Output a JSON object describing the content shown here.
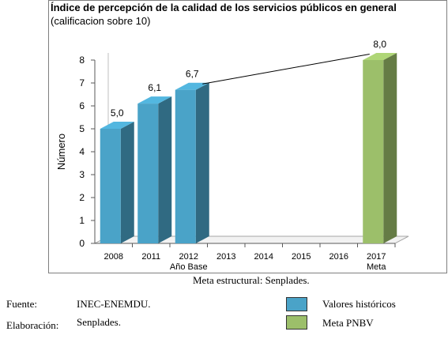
{
  "chart_data": {
    "type": "bar",
    "title": "Índice de percepción de la calidad de los servicios públicos en general",
    "subtitle": "(calificacion sobre 10)",
    "ylabel": "Número",
    "xlabel": "",
    "ylim": [
      0,
      8
    ],
    "yticks": [
      "0",
      "1",
      "2",
      "3",
      "4",
      "5",
      "6",
      "7",
      "8"
    ],
    "categories": [
      "2008",
      "2011",
      "2012",
      "2013",
      "2014",
      "2015",
      "2016",
      "2017"
    ],
    "category_sublabels": [
      "",
      "",
      "Año Base",
      "",
      "",
      "",
      "",
      "Meta"
    ],
    "series": [
      {
        "name": "Valores históricos",
        "color": "#4aa3c8",
        "values": [
          5.0,
          6.1,
          6.7,
          null,
          null,
          null,
          null,
          null
        ],
        "labels": [
          "5,0",
          "6,1",
          "6,7",
          "",
          "",
          "",
          "",
          ""
        ]
      },
      {
        "name": "Meta PNBV",
        "color": "#9cbf6a",
        "values": [
          null,
          null,
          null,
          null,
          null,
          null,
          null,
          8.0
        ],
        "labels": [
          "",
          "",
          "",
          "",
          "",
          "",
          "",
          "8,0"
        ]
      }
    ],
    "trend_line": {
      "from_category": "2012",
      "to_category": "2017"
    },
    "grid": false,
    "legend_placement": "bottom-right"
  },
  "caption": "Meta estructural: Senplades.",
  "source": {
    "label": "Fuente:",
    "value": "INEC-ENEMDU."
  },
  "elaboration": {
    "label": "Elaboración:",
    "value": "Senplades."
  },
  "legend": {
    "historic": {
      "label": "Valores históricos",
      "color": "#4aa3c8"
    },
    "target": {
      "label": "Meta PNBV",
      "color": "#9cbf6a"
    }
  }
}
